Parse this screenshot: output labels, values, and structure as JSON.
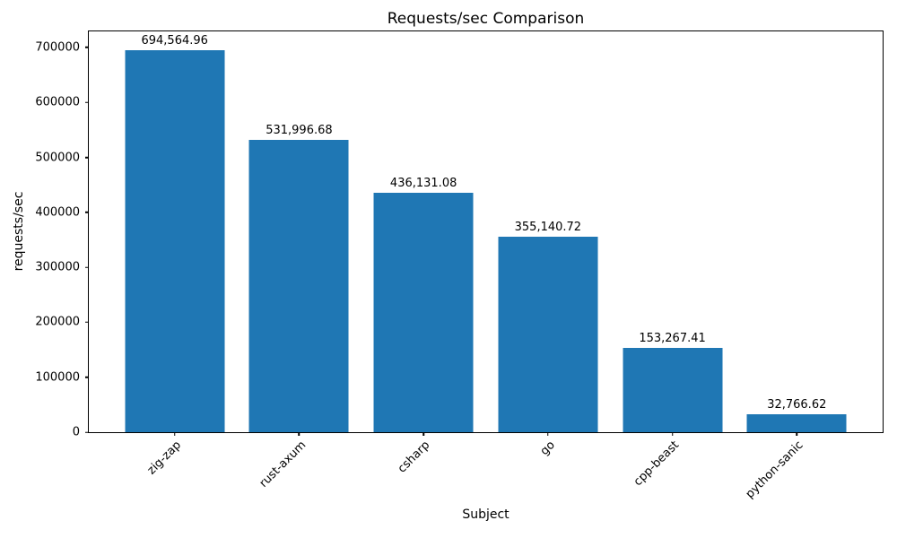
{
  "chart_data": {
    "type": "bar",
    "title": "Requests/sec Comparison",
    "xlabel": "Subject",
    "ylabel": "requests/sec",
    "categories": [
      "zig-zap",
      "rust-axum",
      "csharp",
      "go",
      "cpp-beast",
      "python-sanic"
    ],
    "values": [
      694564.96,
      531996.68,
      436131.08,
      355140.72,
      153267.41,
      32766.62
    ],
    "value_labels": [
      "694,564.96",
      "531,996.68",
      "436,131.08",
      "355,140.72",
      "153,267.41",
      "32,766.62"
    ],
    "yticks": [
      0,
      100000,
      200000,
      300000,
      400000,
      500000,
      600000,
      700000
    ],
    "ytick_labels": [
      "0",
      "100000",
      "200000",
      "300000",
      "400000",
      "500000",
      "600000",
      "700000"
    ],
    "ylim": [
      0,
      729293
    ],
    "bar_color": "#1f77b4",
    "text_color": "#000000",
    "grid": false,
    "legend": null,
    "x_tick_rotation_deg": 45
  }
}
